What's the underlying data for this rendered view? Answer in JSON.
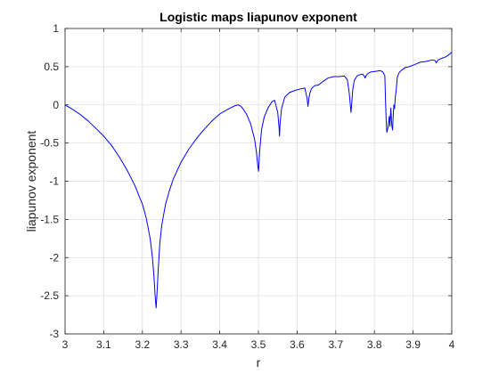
{
  "chart_data": {
    "type": "line",
    "title": "Logistic maps liapunov exponent",
    "xlabel": "r",
    "ylabel": "liapunov exponent",
    "xlim": [
      3,
      4
    ],
    "ylim": [
      -3,
      1
    ],
    "x_ticks": [
      "3",
      "3.1",
      "3.2",
      "3.3",
      "3.4",
      "3.5",
      "3.6",
      "3.7",
      "3.8",
      "3.9",
      "4"
    ],
    "y_ticks": [
      "-3",
      "-2.5",
      "-2",
      "-1.5",
      "-1",
      "-0.5",
      "0",
      "0.5",
      "1"
    ],
    "grid": true,
    "line_color": "#0000ff",
    "series": [
      {
        "x": [
          3.0,
          3.01,
          3.02,
          3.04,
          3.06,
          3.08,
          3.1,
          3.12,
          3.14,
          3.16,
          3.18,
          3.2,
          3.21,
          3.22,
          3.226,
          3.23,
          3.233,
          3.2355,
          3.238,
          3.241,
          3.245,
          3.25,
          3.26,
          3.27,
          3.28,
          3.3,
          3.32,
          3.34,
          3.36,
          3.38,
          3.4,
          3.42,
          3.44,
          3.449,
          3.455,
          3.46,
          3.47,
          3.48,
          3.49,
          3.495,
          3.4985,
          3.5005,
          3.503,
          3.508,
          3.515,
          3.525,
          3.535,
          3.542,
          3.55,
          3.5535,
          3.5545,
          3.556,
          3.56,
          3.568,
          3.58,
          3.595,
          3.61,
          3.62,
          3.626,
          3.628,
          3.6305,
          3.633,
          3.637,
          3.645,
          3.655,
          3.668,
          3.68,
          3.695,
          3.71,
          3.722,
          3.73,
          3.735,
          3.738,
          3.7395,
          3.741,
          3.744,
          3.748,
          3.755,
          3.765,
          3.77,
          3.7745,
          3.776,
          3.778,
          3.783,
          3.79,
          3.805,
          3.815,
          3.822,
          3.827,
          3.829,
          3.8305,
          3.832,
          3.835,
          3.8385,
          3.84,
          3.8425,
          3.845,
          3.847,
          3.849,
          3.8505,
          3.852,
          3.854,
          3.8565,
          3.859,
          3.862,
          3.865,
          3.872,
          3.88,
          3.89,
          3.9,
          3.91,
          3.92,
          3.935,
          3.95,
          3.957,
          3.96,
          3.965,
          3.975,
          3.985,
          3.993,
          4.0
        ],
        "y": [
          0.0,
          -0.03,
          -0.06,
          -0.13,
          -0.21,
          -0.31,
          -0.41,
          -0.53,
          -0.68,
          -0.85,
          -1.05,
          -1.3,
          -1.48,
          -1.75,
          -2.0,
          -2.25,
          -2.5,
          -2.66,
          -2.45,
          -2.15,
          -1.82,
          -1.58,
          -1.3,
          -1.12,
          -0.97,
          -0.75,
          -0.58,
          -0.44,
          -0.32,
          -0.21,
          -0.12,
          -0.06,
          -0.01,
          0.0,
          -0.02,
          -0.05,
          -0.13,
          -0.25,
          -0.45,
          -0.62,
          -0.8,
          -0.87,
          -0.62,
          -0.33,
          -0.16,
          -0.04,
          0.04,
          0.06,
          -0.1,
          -0.3,
          -0.41,
          -0.24,
          -0.05,
          0.1,
          0.16,
          0.19,
          0.21,
          0.22,
          0.08,
          -0.02,
          0.08,
          0.15,
          0.21,
          0.25,
          0.26,
          0.31,
          0.35,
          0.37,
          0.37,
          0.38,
          0.33,
          0.15,
          -0.02,
          -0.1,
          0.0,
          0.2,
          0.32,
          0.38,
          0.4,
          0.4,
          0.37,
          0.35,
          0.38,
          0.41,
          0.43,
          0.44,
          0.45,
          0.43,
          0.38,
          0.0,
          -0.2,
          -0.36,
          -0.3,
          -0.15,
          -0.28,
          -0.04,
          -0.27,
          -0.33,
          -0.1,
          0.0,
          -0.05,
          0.1,
          0.2,
          0.36,
          0.4,
          0.43,
          0.46,
          0.49,
          0.5,
          0.52,
          0.54,
          0.56,
          0.57,
          0.59,
          0.58,
          0.55,
          0.59,
          0.61,
          0.63,
          0.66,
          0.69
        ]
      }
    ]
  }
}
